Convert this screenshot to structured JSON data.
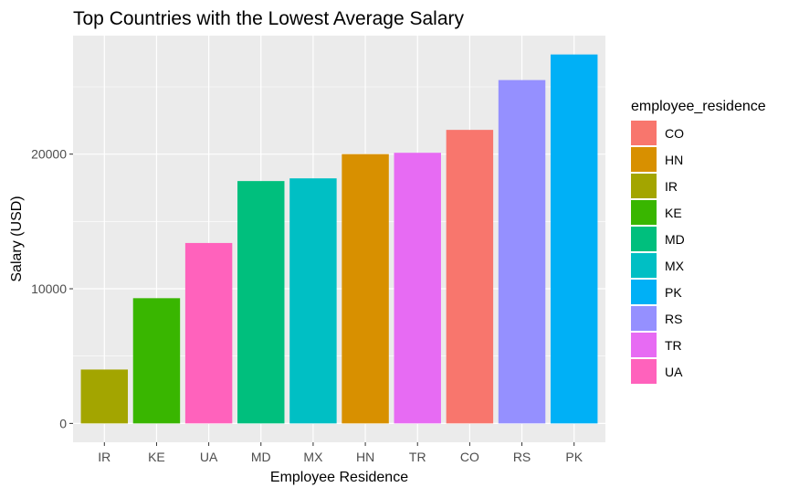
{
  "chart_data": {
    "type": "bar",
    "title": "Top Countries with the Lowest Average Salary",
    "xlabel": "Employee Residence",
    "ylabel": "Salary (USD)",
    "categories": [
      "IR",
      "KE",
      "UA",
      "MD",
      "MX",
      "HN",
      "TR",
      "CO",
      "RS",
      "PK"
    ],
    "values": [
      4000,
      9300,
      13400,
      18000,
      18200,
      20000,
      20100,
      21800,
      25500,
      27400
    ],
    "ylim": [
      -1400,
      28800
    ],
    "yticks": [
      0,
      10000,
      20000
    ],
    "ytick_labels": [
      "0",
      "10000",
      "20000"
    ],
    "grid": true,
    "colors": {
      "IR": "#A3A500",
      "KE": "#39B600",
      "UA": "#FF62BC",
      "MD": "#00BF7D",
      "MX": "#00BFC4",
      "HN": "#D89000",
      "TR": "#E76BF3",
      "CO": "#F8766D",
      "RS": "#9590FF",
      "PK": "#00B0F6"
    },
    "panel_background": "#EBEBEB",
    "legend": {
      "title": "employee_residence",
      "position": "right",
      "entries": [
        "CO",
        "HN",
        "IR",
        "KE",
        "MD",
        "MX",
        "PK",
        "RS",
        "TR",
        "UA"
      ]
    }
  }
}
